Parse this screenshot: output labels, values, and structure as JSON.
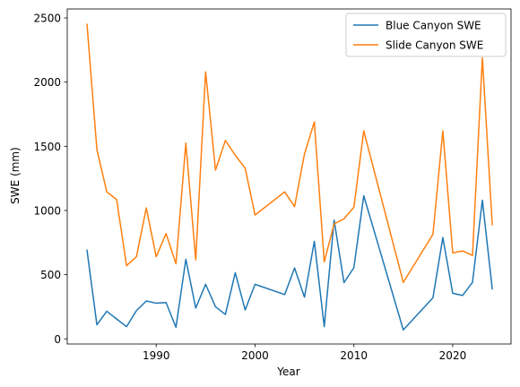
{
  "chart_data": {
    "type": "line",
    "title": "",
    "xlabel": "Year",
    "ylabel": "SWE (mm)",
    "xlim": [
      1981,
      2025.9
    ],
    "ylim": [
      -40,
      2570
    ],
    "xticks": [
      1990,
      2000,
      2010,
      2020
    ],
    "yticks": [
      0,
      500,
      1000,
      1500,
      2000,
      2500
    ],
    "grid": false,
    "legend_position": "top-right",
    "series": [
      {
        "name": "Blue Canyon SWE",
        "color": "#1f77b4",
        "points": [
          [
            1983,
            690
          ],
          [
            1984,
            110
          ],
          [
            1985,
            215
          ],
          [
            1987,
            95
          ],
          [
            1988,
            220
          ],
          [
            1989,
            295
          ],
          [
            1990,
            278
          ],
          [
            1991,
            283
          ],
          [
            1992,
            90
          ],
          [
            1993,
            620
          ],
          [
            1994,
            240
          ],
          [
            1995,
            425
          ],
          [
            1996,
            250
          ],
          [
            1997,
            190
          ],
          [
            1998,
            515
          ],
          [
            1999,
            225
          ],
          [
            2000,
            425
          ],
          [
            2003,
            345
          ],
          [
            2004,
            552
          ],
          [
            2005,
            325
          ],
          [
            2006,
            760
          ],
          [
            2007,
            95
          ],
          [
            2008,
            925
          ],
          [
            2009,
            438
          ],
          [
            2010,
            555
          ],
          [
            2011,
            1115
          ],
          [
            2015,
            70
          ],
          [
            2018,
            320
          ],
          [
            2019,
            790
          ],
          [
            2020,
            355
          ],
          [
            2021,
            338
          ],
          [
            2022,
            440
          ],
          [
            2023,
            1080
          ],
          [
            2024,
            390
          ]
        ]
      },
      {
        "name": "Slide Canyon SWE",
        "color": "#ff7f0e",
        "points": [
          [
            1983,
            2450
          ],
          [
            1984,
            1475
          ],
          [
            1985,
            1145
          ],
          [
            1986,
            1085
          ],
          [
            1987,
            570
          ],
          [
            1988,
            640
          ],
          [
            1989,
            1020
          ],
          [
            1990,
            640
          ],
          [
            1991,
            820
          ],
          [
            1992,
            585
          ],
          [
            1993,
            1525
          ],
          [
            1994,
            615
          ],
          [
            1995,
            2080
          ],
          [
            1996,
            1315
          ],
          [
            1997,
            1545
          ],
          [
            1998,
            1430
          ],
          [
            1999,
            1330
          ],
          [
            2000,
            965
          ],
          [
            2003,
            1145
          ],
          [
            2004,
            1030
          ],
          [
            2005,
            1440
          ],
          [
            2006,
            1690
          ],
          [
            2007,
            600
          ],
          [
            2008,
            895
          ],
          [
            2009,
            935
          ],
          [
            2010,
            1025
          ],
          [
            2011,
            1620
          ],
          [
            2015,
            440
          ],
          [
            2018,
            815
          ],
          [
            2019,
            1620
          ],
          [
            2020,
            670
          ],
          [
            2021,
            685
          ],
          [
            2022,
            650
          ],
          [
            2023,
            2190
          ],
          [
            2024,
            890
          ]
        ]
      }
    ]
  }
}
